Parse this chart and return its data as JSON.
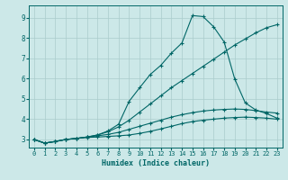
{
  "xlabel": "Humidex (Indice chaleur)",
  "bg_color": "#cce8e8",
  "grid_color": "#aacccc",
  "line_color": "#006666",
  "x_data": [
    0,
    1,
    2,
    3,
    4,
    5,
    6,
    7,
    8,
    9,
    10,
    11,
    12,
    13,
    14,
    15,
    16,
    17,
    18,
    19,
    20,
    21,
    22,
    23
  ],
  "line1": [
    3.0,
    2.82,
    2.9,
    3.0,
    3.05,
    3.1,
    3.12,
    3.15,
    3.18,
    3.22,
    3.3,
    3.4,
    3.52,
    3.65,
    3.78,
    3.88,
    3.95,
    4.0,
    4.05,
    4.08,
    4.1,
    4.08,
    4.05,
    4.0
  ],
  "line2": [
    3.0,
    2.82,
    2.9,
    3.0,
    3.05,
    3.12,
    3.18,
    3.25,
    3.35,
    3.5,
    3.65,
    3.8,
    3.95,
    4.1,
    4.22,
    4.32,
    4.4,
    4.45,
    4.48,
    4.5,
    4.48,
    4.42,
    4.35,
    4.3
  ],
  "line3": [
    3.0,
    2.82,
    2.9,
    3.0,
    3.05,
    3.12,
    3.22,
    3.38,
    3.62,
    3.95,
    4.35,
    4.75,
    5.15,
    5.55,
    5.9,
    6.25,
    6.6,
    6.95,
    7.3,
    7.65,
    7.95,
    8.25,
    8.5,
    8.65
  ],
  "line4": [
    3.0,
    2.82,
    2.9,
    3.0,
    3.05,
    3.12,
    3.22,
    3.42,
    3.75,
    4.88,
    5.55,
    6.2,
    6.65,
    7.25,
    7.75,
    9.1,
    9.05,
    8.55,
    7.8,
    5.98,
    4.8,
    4.45,
    4.28,
    4.05
  ],
  "ylim": [
    2.6,
    9.6
  ],
  "xlim": [
    -0.5,
    23.5
  ],
  "yticks": [
    3,
    4,
    5,
    6,
    7,
    8,
    9
  ],
  "xticks": [
    0,
    1,
    2,
    3,
    4,
    5,
    6,
    7,
    8,
    9,
    10,
    11,
    12,
    13,
    14,
    15,
    16,
    17,
    18,
    19,
    20,
    21,
    22,
    23
  ]
}
